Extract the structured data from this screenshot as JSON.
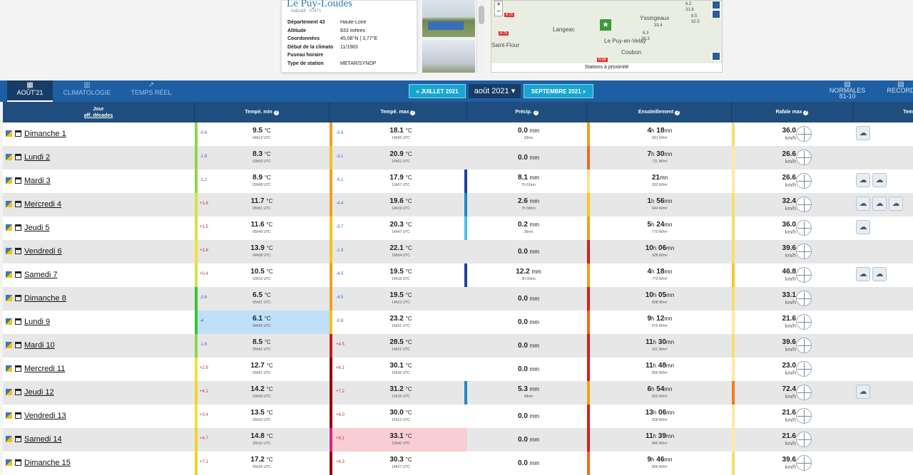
{
  "station": {
    "name": "Le Puy-Loudes",
    "indicatif": "Indicatif : 07471",
    "info": [
      {
        "k": "Département 43",
        "v": "Haute-Loire"
      },
      {
        "k": "Altitude",
        "v": "833 mètres"
      },
      {
        "k": "Coordonnées",
        "v": "45,08°N | 3,77°E"
      },
      {
        "k": "Début de la climato",
        "v": "11/1983"
      },
      {
        "k": "Fuseau horaire",
        "v": ""
      },
      {
        "k": "Type de station",
        "v": "METAR/SYNOP"
      }
    ]
  },
  "map": {
    "caption": "Stations à proximité",
    "labels": [
      "Langeac",
      "Le Puy-en-Velay",
      "Yssingeaux",
      "Coubon",
      "Saint-Flour"
    ],
    "roads": [
      "A 75",
      "A 75",
      "N 88"
    ],
    "pin_values": [
      "6.2",
      "31.8",
      "33.4",
      "8.5",
      "32.5",
      "6.3",
      "36.3"
    ]
  },
  "toolbar": {
    "tabs": [
      {
        "label": "AOÛT'21",
        "icon": "grid-icon"
      },
      {
        "label": "CLIMATOLOGIE",
        "icon": "chart-bar-icon"
      },
      {
        "label": "TEMPS RÉEL",
        "icon": "line-chart-icon"
      }
    ],
    "prev": "« JUILLET 2021",
    "month": "août 2021",
    "next": "SEPTEMBRE 2021 »",
    "normales": "NORMALES",
    "normales_sub": "81-10",
    "records": "RECORD"
  },
  "columns": {
    "jour": "Jour",
    "aff": "aff. décades",
    "tmin": "Tempé. min",
    "tmax": "Tempé. max",
    "precip": "Précip.",
    "sun": "Ensoleillement",
    "gust": "Rafale max",
    "temps": "Tem"
  },
  "rows": [
    {
      "day": "Dimanche 1",
      "tmin_a": "-0.6",
      "tmin": "9.5",
      "tmin_t": "04h13 UTC",
      "tmax_a": "-5.9",
      "tmax": "18.1",
      "tmax_t": "14h55 UTC",
      "p": "0.0",
      "p_t": "02mn",
      "sun_h": "4",
      "sun_m": "18",
      "sun_w": "631 W/m²",
      "g": "36.0",
      "wx": 1
    },
    {
      "day": "Lundi 2",
      "tmin_a": "-1.8",
      "tmin": "8.3",
      "tmin_t": "03h09 UTC",
      "tmax_a": "-3.1",
      "tmax": "20.9",
      "tmax_t": "14h02 UTC",
      "p": "0.0",
      "p_t": "",
      "sun_h": "7",
      "sun_m": "30",
      "sun_w": "711 W/m²",
      "g": "26.6",
      "wx": 0
    },
    {
      "day": "Mardi 3",
      "tmin_a": "-1.2",
      "tmin": "8.9",
      "tmin_t": "02h08 UTC",
      "tmax_a": "-6.1",
      "tmax": "17.9",
      "tmax_t": "13h07 UTC",
      "p": "8.1",
      "p_t": "7h 51mn",
      "sun_h": "",
      "sun_m": "21",
      "sun_w": "333 W/m²",
      "g": "26.6",
      "wx": 2
    },
    {
      "day": "Mercredi 4",
      "tmin_a": "+1.6",
      "tmin": "11.7",
      "tmin_t": "05h01 UTC",
      "tmax_a": "-4.4",
      "tmax": "19.6",
      "tmax_t": "14h19 UTC",
      "p": "2.6",
      "p_t": "7h 58mn",
      "sun_h": "1",
      "sun_m": "56",
      "sun_w": "644 W/m²",
      "g": "32.4",
      "wx": 3
    },
    {
      "day": "Jeudi 5",
      "tmin_a": "+1.5",
      "tmin": "11.6",
      "tmin_t": "05h49 UTC",
      "tmax_a": "-3.7",
      "tmax": "20.3",
      "tmax_t": "14h47 UTC",
      "p": "0.2",
      "p_t": "36mn",
      "sun_h": "5",
      "sun_m": "24",
      "sun_w": "770 W/m²",
      "g": "36.0",
      "wx": 1
    },
    {
      "day": "Vendredi 6",
      "tmin_a": "+3.8",
      "tmin": "13.9",
      "tmin_t": "04h08 UTC",
      "tmax_a": "-1.9",
      "tmax": "22.1",
      "tmax_t": "16h04 UTC",
      "p": "0.0",
      "p_t": "",
      "sun_h": "10",
      "sun_m": "06",
      "sun_w": "928 W/m²",
      "g": "39.6",
      "wx": 0
    },
    {
      "day": "Samedi 7",
      "tmin_a": "+0.4",
      "tmin": "10.5",
      "tmin_t": "03h16 UTC",
      "tmax_a": "-4.5",
      "tmax": "19.5",
      "tmax_t": "14h16 UTC",
      "p": "12.2",
      "p_t": "3h 03mn",
      "sun_h": "4",
      "sun_m": "18",
      "sun_w": "770 W/m²",
      "g": "46.8",
      "wx": 2
    },
    {
      "day": "Dimanche 8",
      "tmin_a": "-3.6",
      "tmin": "6.5",
      "tmin_t": "05h01 UTC",
      "tmax_a": "-4.5",
      "tmax": "19.5",
      "tmax_t": "14h23 UTC",
      "p": "0.0",
      "p_t": "",
      "sun_h": "10",
      "sun_m": "05",
      "sun_w": "808 W/m²",
      "g": "33.1",
      "wx": 0
    },
    {
      "day": "Lundi 9",
      "tmin_a": "-4",
      "tmin": "6.1",
      "tmin_t": "04h42 UTC",
      "tmax_a": "-0.8",
      "tmax": "23.2",
      "tmax_t": "16h01 UTC",
      "p": "0.0",
      "p_t": "",
      "sun_h": "9",
      "sun_m": "12",
      "sun_w": "675 W/m²",
      "g": "21.6",
      "wx": 0
    },
    {
      "day": "Mardi 10",
      "tmin_a": "-1.6",
      "tmin": "8.5",
      "tmin_t": "05h01 UTC",
      "tmax_a": "+4.5",
      "tmax": "28.5",
      "tmax_t": "14h21 UTC",
      "p": "0.0",
      "p_t": "",
      "sun_h": "11",
      "sun_m": "30",
      "sun_w": "911 W/m²",
      "g": "39.6",
      "wx": 0
    },
    {
      "day": "Mercredi 11",
      "tmin_a": "+2.6",
      "tmin": "12.7",
      "tmin_t": "05h01 UTC",
      "tmax_a": "+6.1",
      "tmax": "30.1",
      "tmax_t": "15h36 UTC",
      "p": "0.0",
      "p_t": "",
      "sun_h": "11",
      "sun_m": "48",
      "sun_w": "856 W/m²",
      "g": "23.0",
      "wx": 0
    },
    {
      "day": "Jeudi 12",
      "tmin_a": "+4.1",
      "tmin": "14.2",
      "tmin_t": "03h35 UTC",
      "tmax_a": "+7.2",
      "tmax": "31.2",
      "tmax_t": "12h15 UTC",
      "p": "5.3",
      "p_t": "49mn",
      "sun_h": "6",
      "sun_m": "54",
      "sun_w": "820 W/m²",
      "g": "72.4",
      "wx": 1
    },
    {
      "day": "Vendredi 13",
      "tmin_a": "+3.4",
      "tmin": "13.5",
      "tmin_t": "05h10 UTC",
      "tmax_a": "+6.0",
      "tmax": "30.0",
      "tmax_t": "15h12 UTC",
      "p": "0.0",
      "p_t": "",
      "sun_h": "13",
      "sun_m": "06",
      "sun_w": "828 W/m²",
      "g": "21.6",
      "wx": 0
    },
    {
      "day": "Samedi 14",
      "tmin_a": "+4.7",
      "tmin": "14.8",
      "tmin_t": "05h11 UTC",
      "tmax_a": "+9.1",
      "tmax": "33.1",
      "tmax_t": "13h42 UTC",
      "p": "0.0",
      "p_t": "",
      "sun_h": "11",
      "sun_m": "39",
      "sun_w": "845 W/m²",
      "g": "21.6",
      "wx": 0
    },
    {
      "day": "Dimanche 15",
      "tmin_a": "+7.1",
      "tmin": "17.2",
      "tmin_t": "05h26 UTC",
      "tmax_a": "+6.3",
      "tmax": "30.3",
      "tmax_t": "14h27 UTC",
      "p": "0.0",
      "p_t": "",
      "sun_h": "9",
      "sun_m": "46",
      "sun_w": "856 W/m²",
      "g": "39.6",
      "wx": 0
    }
  ],
  "units": {
    "temp": "°C",
    "rain": "mm",
    "wind": "km/h",
    "h": "h",
    "mn": "mn"
  },
  "colors": {
    "toolbar": "#1e5fa3",
    "header": "#1f4e7e",
    "nav_button": "#19a5cf",
    "cold_highlight": "#bfe0f8",
    "hot_highlight": "#f9cdd4"
  }
}
